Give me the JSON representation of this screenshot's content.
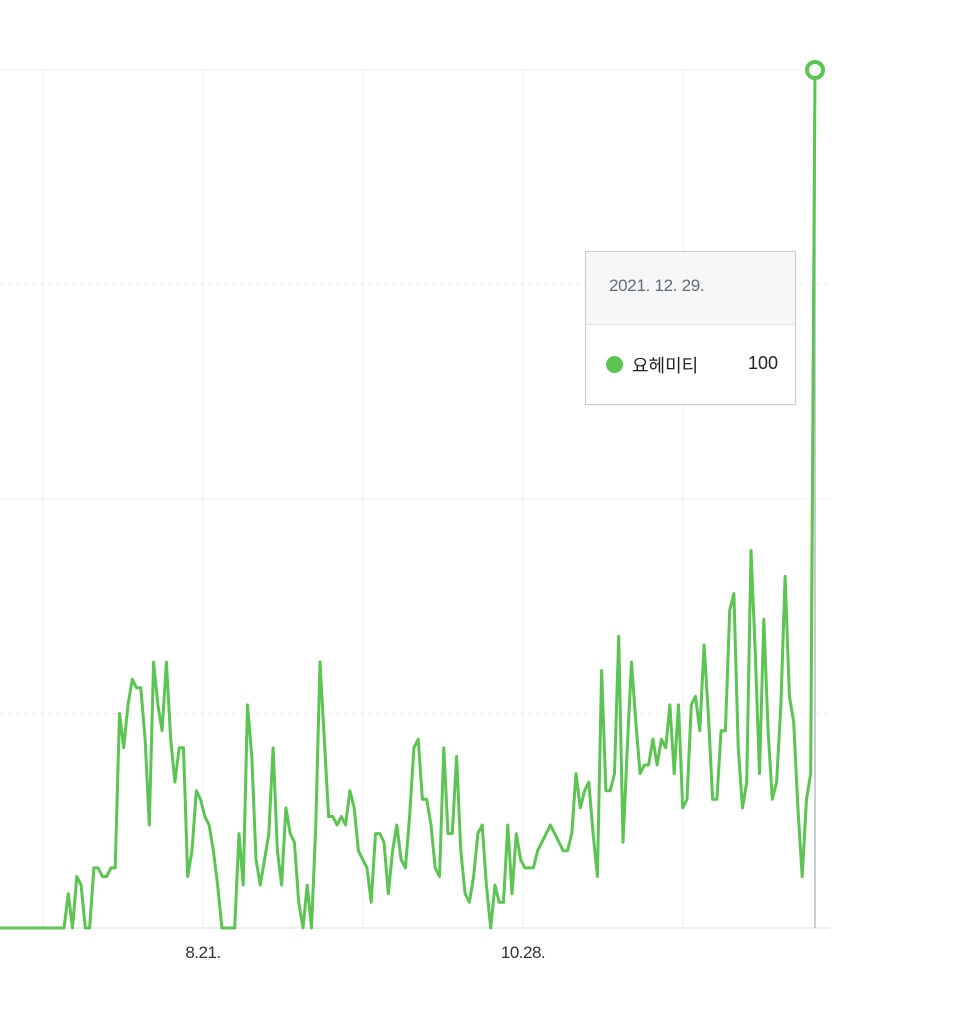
{
  "chart_data": {
    "type": "line",
    "x_tick_labels": [
      "8.21.",
      "10.28."
    ],
    "ylim": [
      0,
      100
    ],
    "grid": true,
    "series": [
      {
        "name": "요헤미티",
        "color": "#5cc452",
        "values": [
          0,
          0,
          0,
          0,
          0,
          0,
          0,
          0,
          0,
          0,
          0,
          0,
          0,
          0,
          0,
          0,
          4,
          0,
          6,
          5,
          0,
          0,
          7,
          7,
          6,
          6,
          7,
          7,
          25,
          21,
          26,
          29,
          28,
          28,
          22,
          12,
          31,
          26,
          23,
          31,
          22,
          17,
          21,
          21,
          6,
          9,
          16,
          15,
          13,
          12,
          9,
          5,
          0,
          0,
          0,
          0,
          11,
          5,
          26,
          20,
          8,
          5,
          8,
          11,
          21,
          9,
          5,
          14,
          11,
          10,
          3,
          0,
          5,
          0,
          12,
          31,
          22,
          13,
          13,
          12,
          13,
          12,
          16,
          14,
          9,
          8,
          7,
          3,
          11,
          11,
          10,
          4,
          9,
          12,
          8,
          7,
          13,
          21,
          22,
          15,
          15,
          12,
          7,
          6,
          21,
          11,
          11,
          20,
          9,
          4,
          3,
          6,
          11,
          12,
          5,
          0,
          5,
          3,
          3,
          12,
          4,
          11,
          8,
          7,
          7,
          7,
          9,
          10,
          11,
          12,
          11,
          10,
          9,
          9,
          11,
          18,
          14,
          16,
          17,
          11,
          6,
          30,
          16,
          16,
          18,
          34,
          10,
          21,
          31,
          24,
          18,
          19,
          19,
          22,
          19,
          22,
          21,
          26,
          18,
          26,
          14,
          15,
          26,
          27,
          23,
          33,
          25,
          15,
          15,
          23,
          23,
          37,
          39,
          21,
          14,
          17,
          44,
          32,
          18,
          36,
          23,
          15,
          17,
          26,
          41,
          27,
          24,
          14,
          6,
          15,
          18,
          100
        ]
      }
    ],
    "tooltip": {
      "date": "2021. 12. 29.",
      "series": "요헤미티",
      "value": "100"
    }
  }
}
